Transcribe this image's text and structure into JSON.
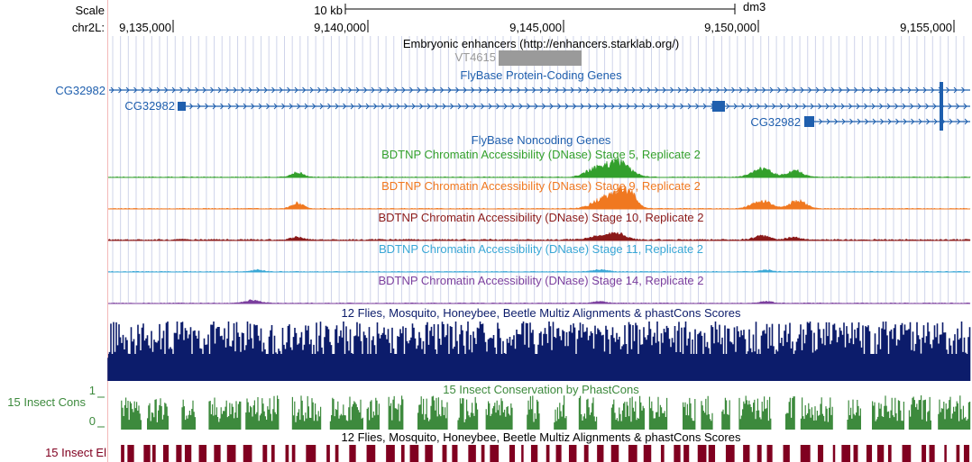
{
  "header": {
    "scale_label": "Scale",
    "scale_value": "10 kb",
    "assembly": "dm3",
    "chrom_label": "chr2L:",
    "positions": [
      "9,135,000",
      "9,140,000",
      "9,145,000",
      "9,150,000",
      "9,155,000"
    ]
  },
  "tracks": {
    "enhancers": {
      "title": "Embryonic enhancers (http://enhancers.starklab.org/)",
      "feature": "VT4615"
    },
    "protein_genes": {
      "title": "FlyBase Protein-Coding Genes",
      "gene_left": "CG32982",
      "gene_mid": "CG32982",
      "gene_right": "CG32982"
    },
    "noncoding": {
      "title": "FlyBase Noncoding Genes"
    },
    "dnase": [
      {
        "title": "BDTNP Chromatin Accessibility (DNase) Stage 5, Replicate 2",
        "color": "#33a02c"
      },
      {
        "title": "BDTNP Chromatin Accessibility (DNase) Stage 9, Replicate 2",
        "color": "#f07820"
      },
      {
        "title": "BDTNP Chromatin Accessibility (DNase) Stage 10, Replicate 2",
        "color": "#8b1a1a"
      },
      {
        "title": "BDTNP Chromatin Accessibility (DNase) Stage 11, Replicate 2",
        "color": "#39a7d6"
      },
      {
        "title": "BDTNP Chromatin Accessibility (DNase) Stage 14, Replicate 2",
        "color": "#7b3f9e"
      }
    ],
    "multiz": {
      "title": "12 Flies, Mosquito, Honeybee, Beetle Multiz Alignments & phastCons Scores",
      "color": "#0c1c6b"
    },
    "cons": {
      "title": "15 Insect Conservation by PhastCons",
      "side_label": "15 Insect Cons",
      "tick_top": "1",
      "tick_bottom": "0",
      "color": "#3d8a3d"
    },
    "elements": {
      "title": "12 Flies, Mosquito, Honeybee, Beetle Multiz Alignments & phastCons Scores",
      "side_label": "15 Insect El",
      "color": "#800020"
    }
  },
  "colors": {
    "gene": "#1f5fae",
    "gridline": "#cfd4ea",
    "enhancer_box": "#9a9a9a",
    "left_margin_line": "#f4b8b8"
  }
}
